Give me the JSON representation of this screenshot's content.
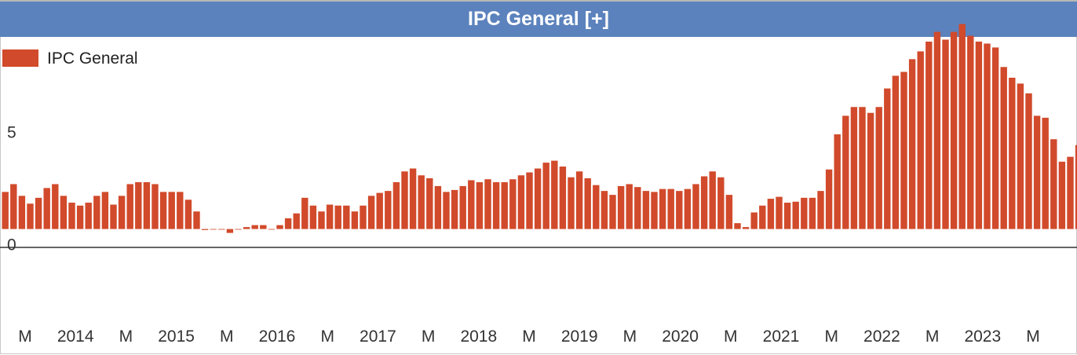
{
  "header": {
    "title": "IPC General [+]"
  },
  "colors": {
    "bar": "#d14a2b",
    "header": "#5b82bd",
    "axis": "#333333"
  },
  "chart_data": {
    "type": "bar",
    "title": "IPC General [+]",
    "legend": {
      "label": "IPC General",
      "position": "top-left"
    },
    "ylim": [
      -4.2,
      9.8
    ],
    "y_ticks": [
      0,
      5
    ],
    "x_tick_labels": [
      "M",
      "2014",
      "M",
      "2015",
      "M",
      "2016",
      "M",
      "2017",
      "M",
      "2018",
      "M",
      "2019",
      "M",
      "2020",
      "M",
      "2021",
      "M",
      "2022",
      "M",
      "2023",
      "M"
    ],
    "series": [
      {
        "name": "IPC General",
        "values": [
          1.9,
          2.3,
          1.7,
          1.3,
          1.6,
          2.1,
          2.3,
          1.7,
          1.35,
          1.2,
          1.35,
          1.7,
          1.9,
          1.25,
          1.7,
          2.3,
          2.4,
          2.4,
          2.3,
          1.9,
          1.9,
          1.9,
          1.5,
          0.9,
          -0.05,
          0.0,
          0.0,
          -0.2,
          0.0,
          0.1,
          0.2,
          0.2,
          0.0,
          0.2,
          0.55,
          0.8,
          1.6,
          1.2,
          0.9,
          1.25,
          1.2,
          1.2,
          0.9,
          1.2,
          1.7,
          1.85,
          1.95,
          2.4,
          2.95,
          3.1,
          2.75,
          2.6,
          2.2,
          1.9,
          2.0,
          2.2,
          2.5,
          2.4,
          2.55,
          2.4,
          2.4,
          2.55,
          2.75,
          2.9,
          3.1,
          3.4,
          3.5,
          3.2,
          2.65,
          2.95,
          2.6,
          2.25,
          1.95,
          1.75,
          2.2,
          2.3,
          2.15,
          1.95,
          1.9,
          2.05,
          2.05,
          1.95,
          2.05,
          2.3,
          2.7,
          2.95,
          2.65,
          1.75,
          0.3,
          0.1,
          0.85,
          1.2,
          1.55,
          1.65,
          1.35,
          1.4,
          1.6,
          1.6,
          1.95,
          3.05,
          4.85,
          5.8,
          6.25,
          6.25,
          5.95,
          6.25,
          7.2,
          7.85,
          8.05,
          8.7,
          9.1,
          9.6,
          10.1,
          9.7,
          10.1,
          10.5,
          9.9,
          9.6,
          9.5,
          9.3,
          8.3,
          7.75,
          7.45,
          6.95,
          5.8,
          5.7,
          4.6,
          3.45,
          3.7,
          4.3
        ]
      }
    ]
  }
}
